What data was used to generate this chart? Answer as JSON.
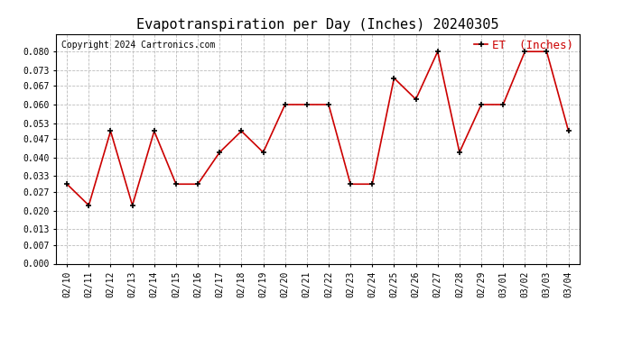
{
  "title": "Evapotranspiration per Day (Inches) 20240305",
  "copyright": "Copyright 2024 Cartronics.com",
  "legend_label": "ET  (Inches)",
  "dates": [
    "02/10",
    "02/11",
    "02/12",
    "02/13",
    "02/14",
    "02/15",
    "02/16",
    "02/17",
    "02/18",
    "02/19",
    "02/20",
    "02/21",
    "02/22",
    "02/23",
    "02/24",
    "02/25",
    "02/26",
    "02/27",
    "02/28",
    "02/29",
    "03/01",
    "03/02",
    "03/03",
    "03/04"
  ],
  "values": [
    0.03,
    0.022,
    0.05,
    0.022,
    0.05,
    0.03,
    0.03,
    0.042,
    0.05,
    0.042,
    0.06,
    0.06,
    0.06,
    0.03,
    0.03,
    0.07,
    0.062,
    0.08,
    0.042,
    0.06,
    0.06,
    0.08,
    0.08,
    0.05
  ],
  "line_color": "#cc0000",
  "marker_color": "#000000",
  "marker_style": "+",
  "grid_color": "#bbbbbb",
  "background_color": "#ffffff",
  "title_fontsize": 11,
  "copyright_fontsize": 7,
  "legend_fontsize": 9,
  "tick_fontsize": 7,
  "ylim": [
    0.0,
    0.0867
  ],
  "ytick_values": [
    0.0,
    0.007,
    0.013,
    0.02,
    0.027,
    0.033,
    0.04,
    0.047,
    0.053,
    0.06,
    0.067,
    0.073,
    0.08
  ],
  "ytick_labels": [
    "0.000",
    "0.007",
    "0.013",
    "0.020",
    "0.027",
    "0.033",
    "0.040",
    "0.047",
    "0.053",
    "0.060",
    "0.067",
    "0.073",
    "0.080"
  ]
}
